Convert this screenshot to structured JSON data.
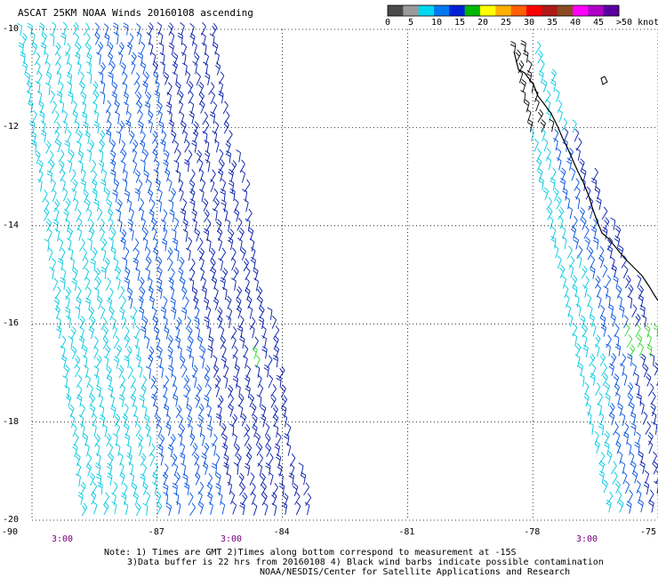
{
  "title": "ASCAT 25KM NOAA Winds 20160108 ascending",
  "legend": {
    "labels": [
      "0",
      "5",
      "10",
      "15",
      "20",
      "25",
      "30",
      "35",
      "40",
      "45",
      ">50 knots"
    ],
    "colors": [
      "#4a4a4a",
      "#9a9a9a",
      "#00d8f0",
      "#0078f0",
      "#0020d8",
      "#00b800",
      "#ffff00",
      "#ffb000",
      "#ff6000",
      "#ff0000",
      "#b01818",
      "#8a4a20",
      "#ff00ff",
      "#b000c8",
      "#5a00a0"
    ]
  },
  "lat_labels": [
    "-10",
    "-12",
    "-14",
    "-16",
    "-18",
    "-20"
  ],
  "lon_labels": [
    "-90",
    "-87",
    "-84",
    "-81",
    "-78",
    "-75"
  ],
  "time_labels": [
    "3:00",
    "3:00",
    "3:00"
  ],
  "notes": [
    "Note: 1) Times are GMT 2)Times along bottom correspond to measurement at -15S",
    "3)Data buffer is 22 hrs from 20160108 4) Black wind barbs indicate possible contamination",
    "NOAA/NESDIS/Center for Satellite Applications and Research"
  ],
  "map": {
    "lat_range": [
      -20,
      -10
    ],
    "lon_range": [
      -90,
      -75
    ],
    "barb_colors": {
      "light": "#00c8e0",
      "mid": "#0050e0",
      "dark": "#0018a8",
      "green": "#30d830",
      "black": "#000000"
    }
  }
}
